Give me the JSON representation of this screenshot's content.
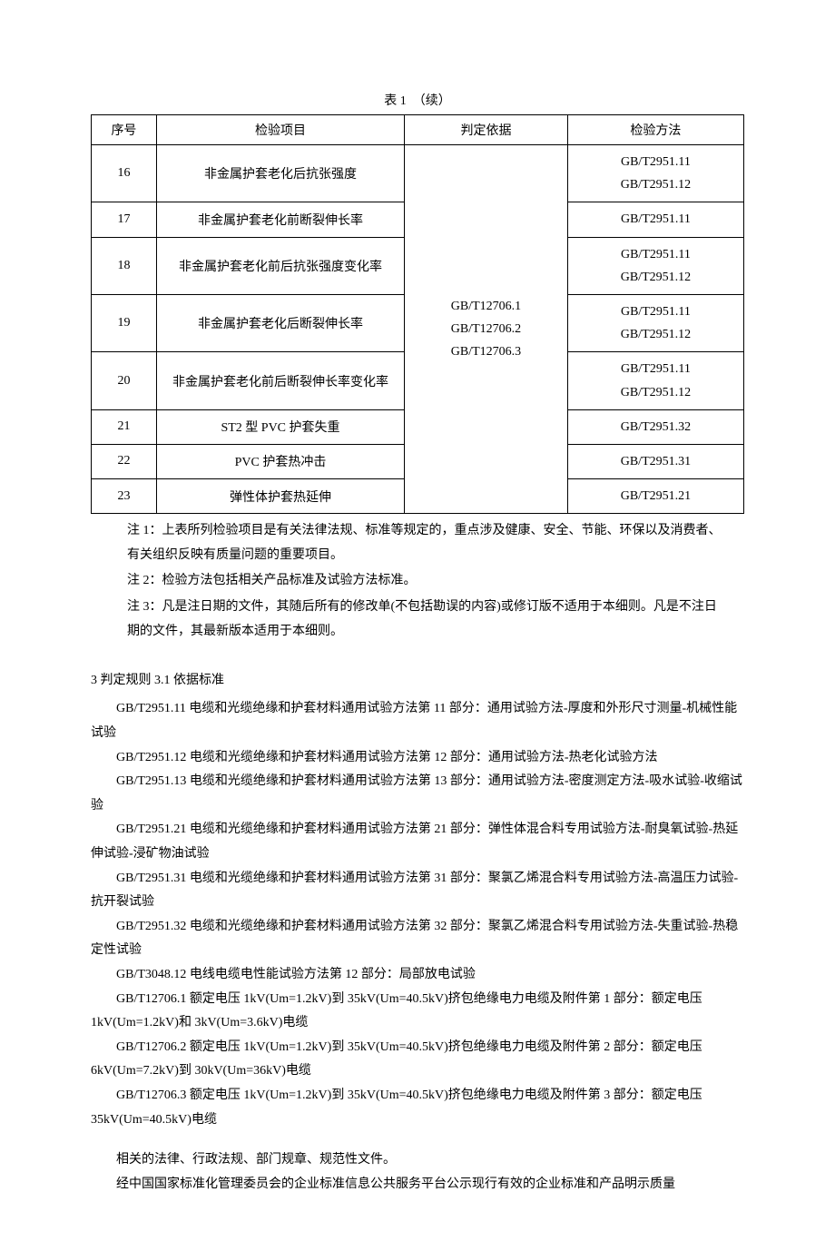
{
  "table": {
    "title": "表 1　（续）",
    "headers": {
      "seq": "序号",
      "item": "检验项目",
      "basis": "判定依据",
      "method": "检验方法"
    },
    "basis_merged": "GB/T12706.1\nGB/T12706.2\nGB/T12706.3",
    "rows": [
      {
        "seq": "16",
        "item": "非金属护套老化后抗张强度",
        "method": "GB/T2951.11\nGB/T2951.12"
      },
      {
        "seq": "17",
        "item": "非金属护套老化前断裂伸长率",
        "method": "GB/T2951.11"
      },
      {
        "seq": "18",
        "item": "非金属护套老化前后抗张强度变化率",
        "method": "GB/T2951.11\nGB/T2951.12"
      },
      {
        "seq": "19",
        "item": "非金属护套老化后断裂伸长率",
        "method": "GB/T2951.11\nGB/T2951.12"
      },
      {
        "seq": "20",
        "item": "非金属护套老化前后断裂伸长率变化率",
        "method": "GB/T2951.11\nGB/T2951.12"
      },
      {
        "seq": "21",
        "item": "ST2 型 PVC 护套失重",
        "method": "GB/T2951.32"
      },
      {
        "seq": "22",
        "item": "PVC 护套热冲击",
        "method": "GB/T2951.31"
      },
      {
        "seq": "23",
        "item": "弹性体护套热延伸",
        "method": "GB/T2951.21"
      }
    ]
  },
  "notes": {
    "n1": "注 1：上表所列检验项目是有关法律法规、标准等规定的，重点涉及健康、安全、节能、环保以及消费者、有关组织反映有质量问题的重要项目。",
    "n2": "注 2：检验方法包括相关产品标准及试验方法标准。",
    "n3": "注 3：凡是注日期的文件，其随后所有的修改单(不包括勘误的内容)或修订版不适用于本细则。凡是不注日期的文件，其最新版本适用于本细则。"
  },
  "section": {
    "heading": "3 判定规则 3.1 依据标准",
    "standards": [
      "GB/T2951.11 电缆和光缆绝缘和护套材料通用试验方法第 11 部分：通用试验方法-厚度和外形尺寸测量-机械性能试验",
      "GB/T2951.12 电缆和光缆绝缘和护套材料通用试验方法第 12 部分：通用试验方法-热老化试验方法",
      "GB/T2951.13 电缆和光缆绝缘和护套材料通用试验方法第 13 部分：通用试验方法-密度测定方法-吸水试验-收缩试验",
      "GB/T2951.21 电缆和光缆绝缘和护套材料通用试验方法第 21 部分：弹性体混合料专用试验方法-耐臭氧试验-热延伸试验-浸矿物油试验",
      "GB/T2951.31 电缆和光缆绝缘和护套材料通用试验方法第 31 部分：聚氯乙烯混合料专用试验方法-高温压力试验-抗开裂试验",
      "GB/T2951.32 电缆和光缆绝缘和护套材料通用试验方法第 32 部分：聚氯乙烯混合料专用试验方法-失重试验-热稳定性试验",
      "GB/T3048.12 电线电缆电性能试验方法第 12 部分：局部放电试验",
      "GB/T12706.1 额定电压 1kV(Um=1.2kV)到 35kV(Um=40.5kV)挤包绝缘电力电缆及附件第 1 部分：额定电压 1kV(Um=1.2kV)和 3kV(Um=3.6kV)电缆",
      "GB/T12706.2 额定电压 1kV(Um=1.2kV)到 35kV(Um=40.5kV)挤包绝缘电力电缆及附件第 2 部分：额定电压 6kV(Um=7.2kV)到 30kV(Um=36kV)电缆",
      "GB/T12706.3 额定电压 1kV(Um=1.2kV)到 35kV(Um=40.5kV)挤包绝缘电力电缆及附件第 3 部分：额定电压 35kV(Um=40.5kV)电缆"
    ],
    "tail": [
      "相关的法律、行政法规、部门规章、规范性文件。",
      "经中国国家标准化管理委员会的企业标准信息公共服务平台公示现行有效的企业标准和产品明示质量"
    ]
  }
}
